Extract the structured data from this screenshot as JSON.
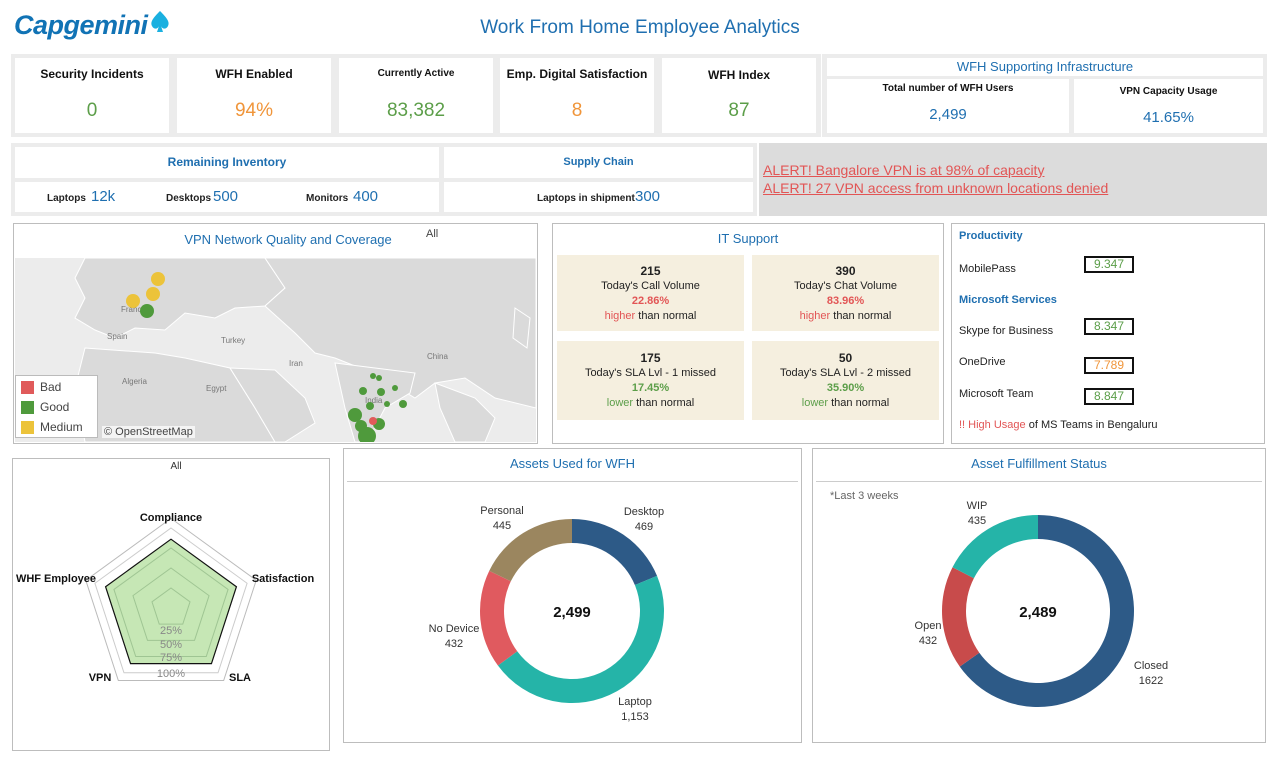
{
  "header": {
    "logo": "Capgemini",
    "title": "Work From Home Employee Analytics"
  },
  "kpis": [
    {
      "label": "Security Incidents",
      "value": "0",
      "color": "#5c9e49"
    },
    {
      "label": "WFH Enabled",
      "value": "94%",
      "color": "#f0953a"
    },
    {
      "label": "Currently Active",
      "value": "83,382",
      "color": "#5c9e49"
    },
    {
      "label": "Emp. Digital Satisfaction",
      "value": "8",
      "color": "#f0953a"
    },
    {
      "label": "WFH Index",
      "value": "87",
      "color": "#5c9e49"
    }
  ],
  "infrastructure": {
    "title": "WFH Supporting Infrastructure",
    "items": [
      {
        "label": "Total number of WFH Users",
        "value": "2,499"
      },
      {
        "label": "VPN Capacity Usage",
        "value": "41.65%"
      }
    ]
  },
  "inventory": {
    "title": "Remaining Inventory",
    "items": [
      {
        "label": "Laptops",
        "value": "12k"
      },
      {
        "label": "Desktops",
        "value": "500"
      },
      {
        "label": "Monitors",
        "value": "400"
      }
    ]
  },
  "supply": {
    "title": "Supply Chain",
    "label": "Laptops in shipment",
    "value": "300"
  },
  "alerts": [
    "ALERT! Bangalore VPN is at 98% of capacity",
    "ALERT! 27 VPN access from unknown locations denied"
  ],
  "vpn_map": {
    "title": "VPN Network Quality and Coverage",
    "filter": "All",
    "credit": "© OpenStreetMap",
    "place_labels": [
      "France",
      "Spain",
      "Turkey",
      "Iran",
      "China",
      "Algeria",
      "Egypt",
      "India"
    ],
    "legend": [
      {
        "label": "Bad",
        "color": "#e05a5a"
      },
      {
        "label": "Good",
        "color": "#4f9a3c"
      },
      {
        "label": "Medium",
        "color": "#ecc33a"
      }
    ]
  },
  "it_support": {
    "title": "IT Support",
    "cards": [
      {
        "number": "215",
        "label": "Today's Call Volume",
        "pct": "22.86%",
        "trend": "higher",
        "suffix": " than normal",
        "color": "#e25555"
      },
      {
        "number": "390",
        "label": "Today's Chat Volume",
        "pct": "83.96%",
        "trend": "higher",
        "suffix": " than normal",
        "color": "#e25555"
      },
      {
        "number": "175",
        "label": "Today's SLA Lvl - 1 missed",
        "pct": "17.45%",
        "trend": "lower",
        "suffix": " than normal",
        "color": "#5c9e49"
      },
      {
        "number": "50",
        "label": "Today's SLA Lvl - 2 missed",
        "pct": "35.90%",
        "trend": "lower",
        "suffix": " than normal",
        "color": "#5c9e49"
      }
    ]
  },
  "productivity": {
    "title": "Productivity",
    "mobilepass": {
      "label": "MobilePass",
      "value": "9.347",
      "color": "#5c9e49"
    },
    "ms_title": "Microsoft Services",
    "services": [
      {
        "label": "Skype for Business",
        "value": "8.347",
        "color": "#5c9e49"
      },
      {
        "label": "OneDrive",
        "value": "7.789",
        "color": "#f0953a"
      },
      {
        "label": "Microsoft Team",
        "value": "8.847",
        "color": "#5c9e49"
      }
    ],
    "note_red": "!! High Usage",
    "note_rest": " of MS Teams in Bengaluru"
  },
  "radar": {
    "filter": "All",
    "axes": [
      "Compliance",
      "Satisfaction",
      "SLA",
      "VPN",
      "WHF Employee"
    ],
    "ring_labels": [
      "25%",
      "50%",
      "75%",
      "100%"
    ],
    "values": [
      0.86,
      0.86,
      0.86,
      0.86,
      0.86
    ]
  },
  "chart_data": [
    {
      "type": "pie",
      "title": "Assets Used for WFH",
      "center_label": "2,499",
      "categories": [
        "Desktop",
        "Laptop",
        "No Device",
        "Personal"
      ],
      "values": [
        469,
        1153,
        432,
        445
      ],
      "value_labels": [
        "469",
        "1,153",
        "432",
        "445"
      ],
      "colors": [
        "#2d5a87",
        "#25b4a8",
        "#e05a5f",
        "#9b865f"
      ]
    },
    {
      "type": "pie",
      "title": "Asset Fulfillment Status",
      "subtitle": "*Last 3 weeks",
      "center_label": "2,489",
      "categories": [
        "Closed",
        "Open",
        "WIP"
      ],
      "values": [
        1622,
        432,
        435
      ],
      "value_labels": [
        "1622",
        "432",
        "435"
      ],
      "colors": [
        "#2d5a87",
        "#c84b4b",
        "#25b4a8"
      ]
    }
  ]
}
